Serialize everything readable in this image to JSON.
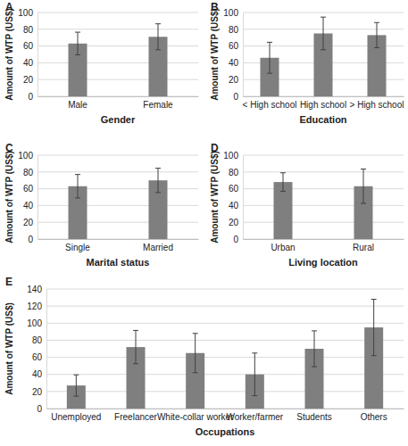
{
  "chart_data": [
    {
      "type": "bar",
      "title": "A",
      "x_label": "Gender",
      "y_label": "Amount of WTP (US$)",
      "categories": [
        "Male",
        "Female"
      ],
      "values": [
        63,
        71
      ],
      "errors": [
        13.5,
        15.5
      ],
      "color": "#7f7f7f",
      "ylim": [
        0,
        100
      ],
      "yticks": [
        0,
        20,
        40,
        60,
        80,
        100
      ],
      "grid": true
    },
    {
      "type": "bar",
      "title": "B",
      "x_label": "Education",
      "y_label": "Amount of WTP (US$)",
      "categories": [
        "< High school",
        "High school",
        "> High school"
      ],
      "values": [
        46,
        75,
        73
      ],
      "errors": [
        18.5,
        19.5,
        15
      ],
      "color": "#7f7f7f",
      "ylim": [
        0,
        100
      ],
      "yticks": [
        0,
        20,
        40,
        60,
        80,
        100
      ],
      "grid": true
    },
    {
      "type": "bar",
      "title": "C",
      "x_label": "Marital status",
      "y_label": "Amount of WTP (US$)",
      "categories": [
        "Single",
        "Married"
      ],
      "values": [
        63,
        70
      ],
      "errors": [
        14,
        14.5
      ],
      "color": "#7f7f7f",
      "ylim": [
        0,
        100
      ],
      "yticks": [
        0,
        20,
        40,
        60,
        80,
        100
      ],
      "grid": true
    },
    {
      "type": "bar",
      "title": "D",
      "x_label": "Living location",
      "y_label": "Amount of WTP (US$)",
      "categories": [
        "Urban",
        "Rural"
      ],
      "values": [
        68,
        63
      ],
      "errors": [
        11,
        20.5
      ],
      "color": "#7f7f7f",
      "ylim": [
        0,
        100
      ],
      "yticks": [
        0,
        20,
        40,
        60,
        80,
        100
      ],
      "grid": true
    },
    {
      "type": "bar",
      "title": "E",
      "x_label": "Occupations",
      "y_label": "Amount of WTP (US$)",
      "categories": [
        "Unemployed",
        "Freelancer",
        "White-collar worker",
        "Worker/farmer",
        "Students",
        "Others"
      ],
      "values": [
        27,
        72,
        65,
        40,
        70,
        95
      ],
      "errors": [
        12.5,
        19.5,
        23,
        25,
        21,
        33
      ],
      "color": "#7f7f7f",
      "ylim": [
        0,
        140
      ],
      "yticks": [
        0,
        20,
        40,
        60,
        80,
        100,
        120,
        140
      ],
      "grid": true
    }
  ]
}
